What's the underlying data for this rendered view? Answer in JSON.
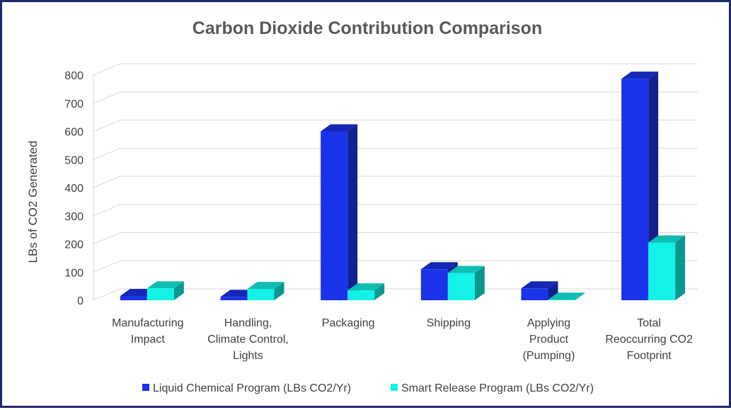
{
  "chart_data": {
    "type": "bar",
    "title": "Carbon Dioxide Contribution Comparison",
    "xlabel": "",
    "ylabel": "LBs of CO2 Generated",
    "ylim": [
      0,
      800
    ],
    "yticks": [
      0,
      100,
      200,
      300,
      400,
      500,
      600,
      700,
      800
    ],
    "grid": true,
    "legend_position": "bottom",
    "categories": [
      [
        "Manufacturing",
        "Impact"
      ],
      [
        "Handling,",
        "Climate Control,",
        "Lights"
      ],
      [
        "Packaging"
      ],
      [
        "Shipping"
      ],
      [
        "Applying",
        "Product",
        "(Pumping)"
      ],
      [
        "Total",
        "Reoccurring CO2",
        "Footprint"
      ]
    ],
    "series": [
      {
        "name": "Liquid Chemical Program (LBs CO2/Yr)",
        "color": "#1a33e8",
        "values": [
          15,
          12,
          600,
          110,
          42,
          787
        ]
      },
      {
        "name": "Smart Release Program (LBs CO2/Yr)",
        "color": "#12f2e6",
        "values": [
          42,
          40,
          35,
          97,
          2,
          205
        ]
      }
    ]
  }
}
